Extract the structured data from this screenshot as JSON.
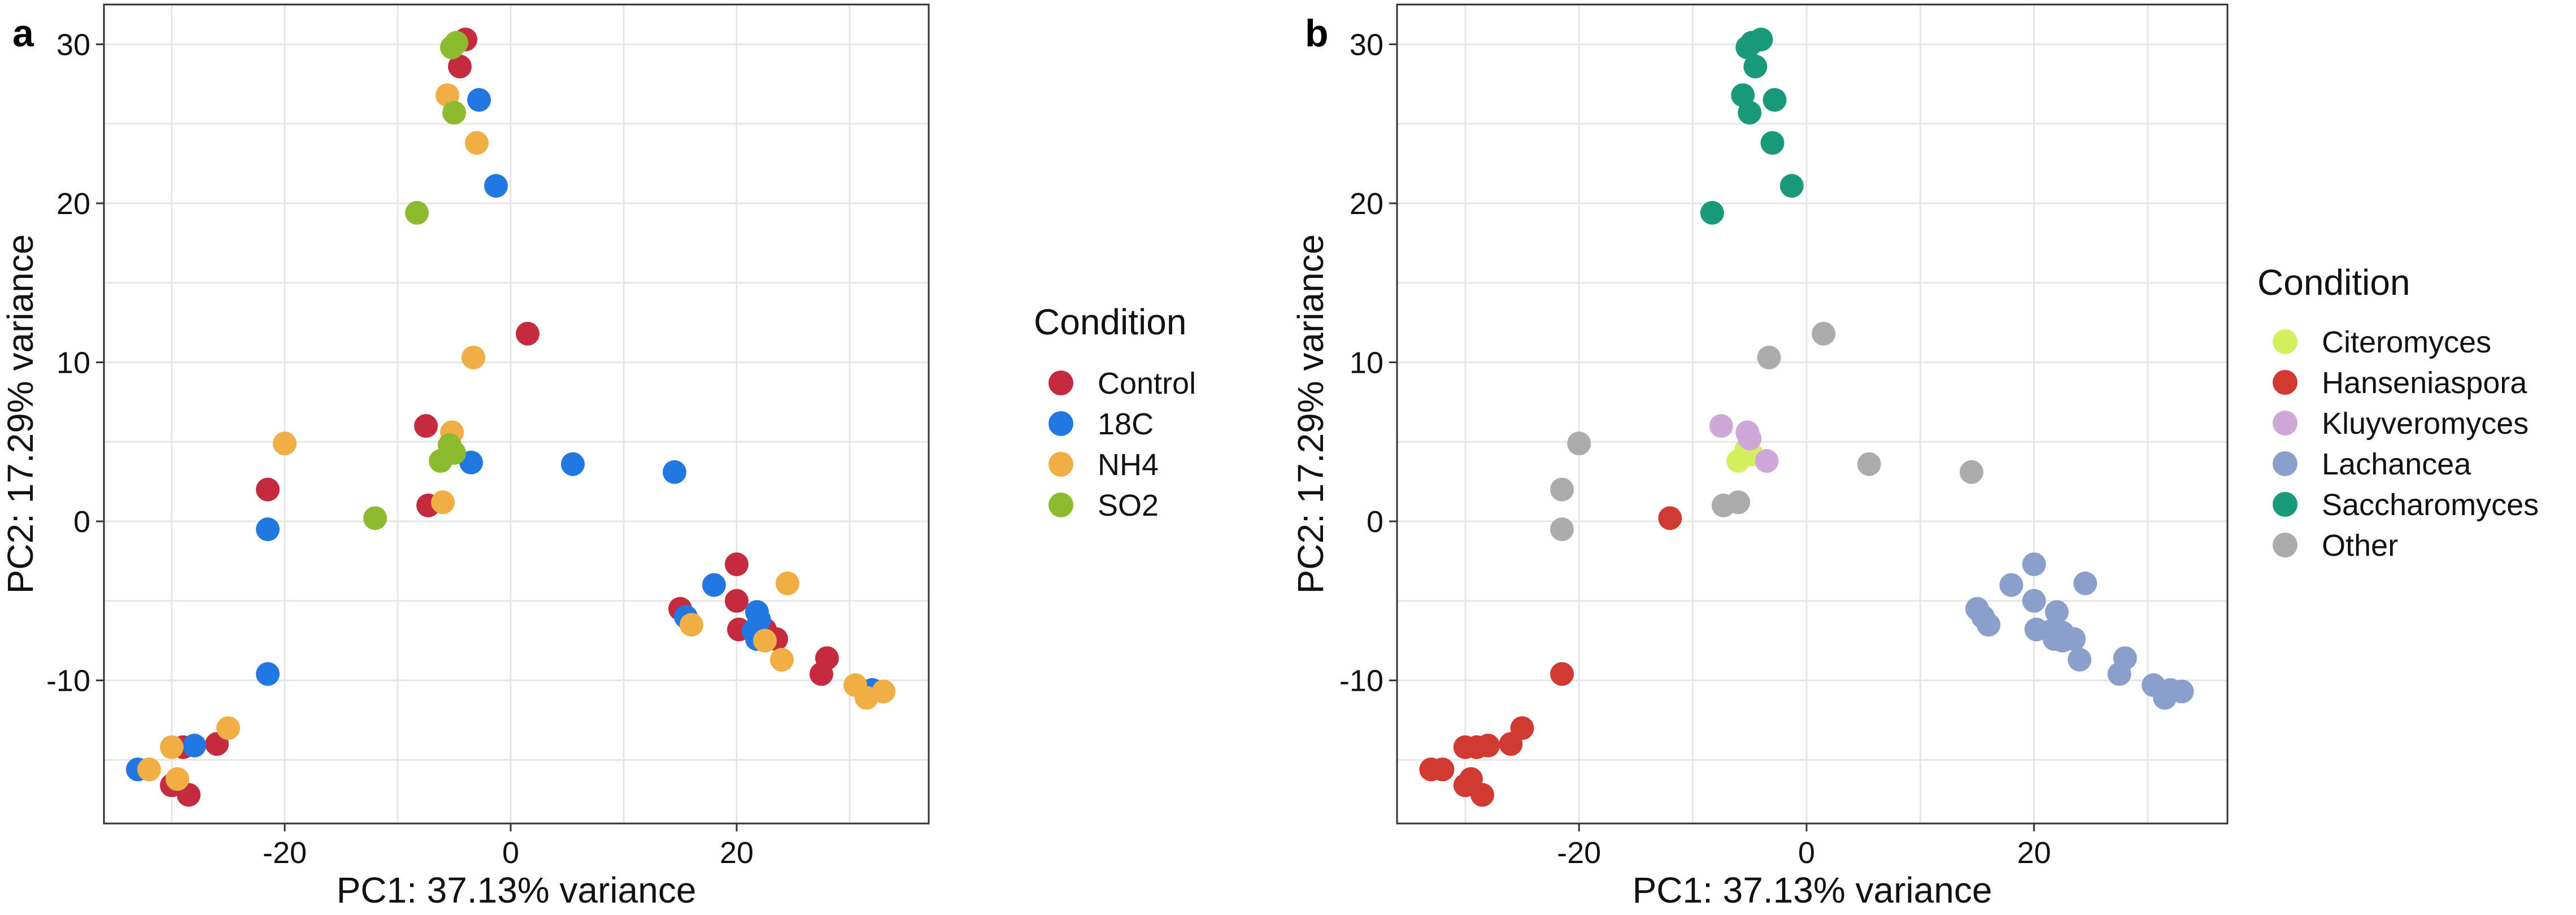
{
  "figure": {
    "panels": [
      {
        "label": "a",
        "xlabel": "PC1: 37.13% variance",
        "ylabel": "PC2: 17.29% variance",
        "legend_title": "Condition",
        "legend_items": [
          {
            "name": "Control",
            "color": "#C42B3F"
          },
          {
            "name": "18C",
            "color": "#2277E0"
          },
          {
            "name": "NH4",
            "color": "#F0AE45"
          },
          {
            "name": "SO2",
            "color": "#8DBB30"
          }
        ]
      },
      {
        "label": "b",
        "xlabel": "PC1: 37.13% variance",
        "ylabel": "PC2: 17.29% variance",
        "legend_title": "Condition",
        "legend_items": [
          {
            "name": "Citeromyces",
            "color": "#D4F060"
          },
          {
            "name": "Hanseniaspora",
            "color": "#D03A32"
          },
          {
            "name": "Kluyveromyces",
            "color": "#CFA8D8"
          },
          {
            "name": "Lachancea",
            "color": "#8C9FCB"
          },
          {
            "name": "Saccharomyces",
            "color": "#1A9A78"
          },
          {
            "name": "Other",
            "color": "#ACACAC"
          }
        ]
      }
    ]
  },
  "chart_data": [
    {
      "type": "scatter",
      "panel": "a",
      "xlabel": "PC1: 37.13% variance",
      "ylabel": "PC2: 17.29% variance",
      "xlim": [
        -36,
        37
      ],
      "ylim": [
        -19,
        32.5
      ],
      "xticks": [
        -20,
        0,
        20
      ],
      "xtick_labels": [
        "-20",
        "0",
        "20"
      ],
      "yticks": [
        -10,
        0,
        10,
        20,
        30
      ],
      "ytick_labels": [
        "-10",
        "0",
        "10",
        "20",
        "30"
      ],
      "grid": true,
      "legend_title": "Condition",
      "legend_position": "right",
      "series": [
        {
          "name": "Control",
          "color": "#C42B3F",
          "points": [
            [
              -4,
              30.3
            ],
            [
              -4.5,
              28.6
            ],
            [
              1.5,
              11.8
            ],
            [
              -7.5,
              6.0
            ],
            [
              -7.3,
              1.0
            ],
            [
              -21.5,
              2.0
            ],
            [
              -26,
              -14.0
            ],
            [
              -29,
              -14.2
            ],
            [
              -30,
              -16.6
            ],
            [
              -28.5,
              -17.2
            ],
            [
              20,
              -2.7
            ],
            [
              20,
              -5.0
            ],
            [
              15,
              -5.5
            ],
            [
              20.2,
              -6.8
            ],
            [
              22.5,
              -6.8
            ],
            [
              23.5,
              -7.4
            ],
            [
              28,
              -8.6
            ],
            [
              27.5,
              -9.6
            ]
          ]
        },
        {
          "name": "18C",
          "color": "#2277E0",
          "points": [
            [
              -2.8,
              26.5
            ],
            [
              -1.3,
              21.1
            ],
            [
              -3.5,
              3.7
            ],
            [
              5.5,
              3.6
            ],
            [
              14.5,
              3.1
            ],
            [
              -21.5,
              -0.5
            ],
            [
              -21.5,
              -9.6
            ],
            [
              -33,
              -15.6
            ],
            [
              -28,
              -14.1
            ],
            [
              18,
              -4.0
            ],
            [
              15.5,
              -6.0
            ],
            [
              21.8,
              -5.7
            ],
            [
              21.5,
              -6.9
            ],
            [
              21.8,
              -7.4
            ],
            [
              22,
              -6.2
            ],
            [
              32,
              -10.6
            ]
          ]
        },
        {
          "name": "NH4",
          "color": "#F0AE45",
          "points": [
            [
              -5.6,
              26.8
            ],
            [
              -3,
              23.8
            ],
            [
              -3.3,
              10.3
            ],
            [
              -5.2,
              5.6
            ],
            [
              -6,
              1.2
            ],
            [
              -20,
              4.9
            ],
            [
              -25,
              -13.0
            ],
            [
              -30,
              -14.2
            ],
            [
              -32,
              -15.6
            ],
            [
              -29.5,
              -16.2
            ],
            [
              24.5,
              -3.9
            ],
            [
              16,
              -6.5
            ],
            [
              22.5,
              -7.5
            ],
            [
              24,
              -8.7
            ],
            [
              30.5,
              -10.3
            ],
            [
              31.5,
              -11.1
            ],
            [
              33,
              -10.7
            ]
          ]
        },
        {
          "name": "SO2",
          "color": "#8DBB30",
          "points": [
            [
              -5.2,
              29.8
            ],
            [
              -4.8,
              30.1
            ],
            [
              -5.0,
              25.7
            ],
            [
              -8.3,
              19.4
            ],
            [
              -6.2,
              3.8
            ],
            [
              -5.4,
              4.8
            ],
            [
              -5.0,
              4.3
            ],
            [
              -12,
              0.2
            ]
          ]
        }
      ]
    },
    {
      "type": "scatter",
      "panel": "b",
      "xlabel": "PC1: 37.13% variance",
      "ylabel": "PC2: 17.29% variance",
      "xlim": [
        -36,
        37
      ],
      "ylim": [
        -19,
        32.5
      ],
      "xticks": [
        -20,
        0,
        20
      ],
      "xtick_labels": [
        "-20",
        "0",
        "20"
      ],
      "yticks": [
        -10,
        0,
        10,
        20,
        30
      ],
      "ytick_labels": [
        "-10",
        "0",
        "10",
        "20",
        "30"
      ],
      "grid": true,
      "legend_title": "Condition",
      "legend_position": "right",
      "series": [
        {
          "name": "Citeromyces",
          "color": "#D4F060",
          "points": [
            [
              -6.0,
              3.8
            ],
            [
              -5.3,
              4.5
            ],
            [
              -4.8,
              4.2
            ]
          ]
        },
        {
          "name": "Hanseniaspora",
          "color": "#D03A32",
          "points": [
            [
              -12,
              0.2
            ],
            [
              -21.5,
              -9.6
            ],
            [
              -25,
              -13.0
            ],
            [
              -26,
              -14.0
            ],
            [
              -28,
              -14.1
            ],
            [
              -29,
              -14.2
            ],
            [
              -30,
              -14.2
            ],
            [
              -33,
              -15.6
            ],
            [
              -32,
              -15.6
            ],
            [
              -29.5,
              -16.2
            ],
            [
              -30,
              -16.6
            ],
            [
              -28.5,
              -17.2
            ]
          ]
        },
        {
          "name": "Kluyveromyces",
          "color": "#CFA8D8",
          "points": [
            [
              -7.5,
              6.0
            ],
            [
              -5.2,
              5.6
            ],
            [
              -5.0,
              5.2
            ],
            [
              -3.5,
              3.8
            ]
          ]
        },
        {
          "name": "Lachancea",
          "color": "#8C9FCB",
          "points": [
            [
              20,
              -2.7
            ],
            [
              24.5,
              -3.9
            ],
            [
              18,
              -4.0
            ],
            [
              20,
              -5.0
            ],
            [
              15,
              -5.5
            ],
            [
              22,
              -5.7
            ],
            [
              15.5,
              -6.0
            ],
            [
              16,
              -6.5
            ],
            [
              20.2,
              -6.8
            ],
            [
              21.5,
              -6.9
            ],
            [
              22.5,
              -7.0
            ],
            [
              23.5,
              -7.4
            ],
            [
              21.8,
              -7.4
            ],
            [
              22.5,
              -7.5
            ],
            [
              28,
              -8.6
            ],
            [
              24,
              -8.7
            ],
            [
              27.5,
              -9.6
            ],
            [
              30.5,
              -10.3
            ],
            [
              32,
              -10.6
            ],
            [
              33,
              -10.7
            ],
            [
              31.5,
              -11.1
            ]
          ]
        },
        {
          "name": "Saccharomyces",
          "color": "#1A9A78",
          "points": [
            [
              -4,
              30.3
            ],
            [
              -4.8,
              30.1
            ],
            [
              -5.2,
              29.8
            ],
            [
              -4.5,
              28.6
            ],
            [
              -5.6,
              26.8
            ],
            [
              -2.8,
              26.5
            ],
            [
              -5.0,
              25.7
            ],
            [
              -3,
              23.8
            ],
            [
              -1.3,
              21.1
            ],
            [
              -8.3,
              19.4
            ]
          ]
        },
        {
          "name": "Other",
          "color": "#ACACAC",
          "points": [
            [
              1.5,
              11.8
            ],
            [
              -3.3,
              10.3
            ],
            [
              -20,
              4.9
            ],
            [
              5.5,
              3.6
            ],
            [
              14.5,
              3.1
            ],
            [
              -21.5,
              2.0
            ],
            [
              -6,
              1.2
            ],
            [
              -7.3,
              1.0
            ],
            [
              -21.5,
              -0.5
            ]
          ]
        }
      ]
    }
  ]
}
